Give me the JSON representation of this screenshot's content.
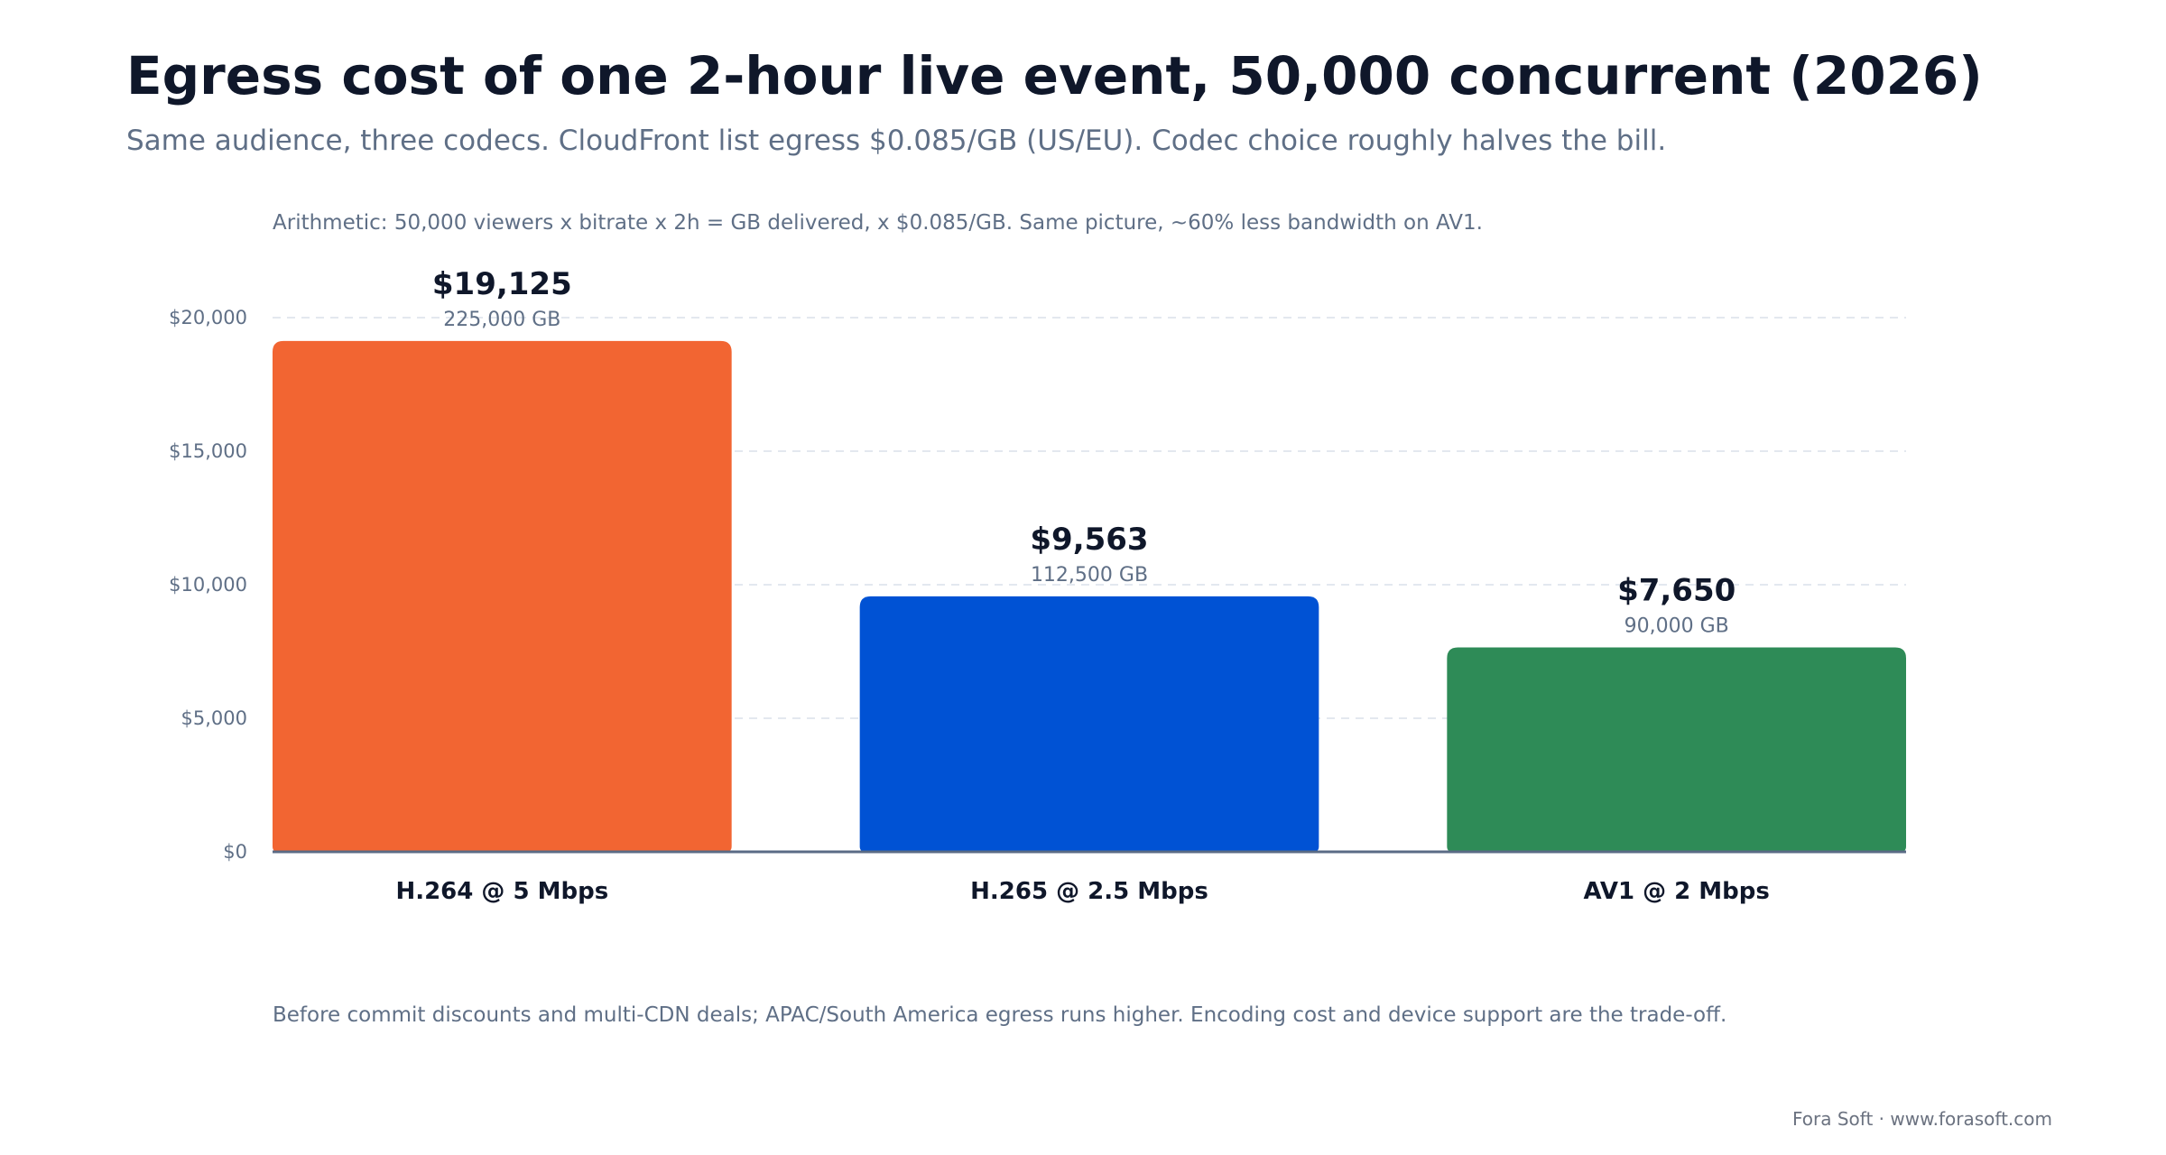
{
  "header": {
    "title": "Egress cost of one 2-hour live event, 50,000 concurrent (2026)",
    "subtitle": "Same audience, three codecs. CloudFront list egress $0.085/GB (US/EU). Codec choice roughly halves the bill."
  },
  "chart_note": "Arithmetic: 50,000 viewers x bitrate x 2h = GB delivered, x $0.085/GB. Same picture, ~60% less bandwidth on AV1.",
  "footnote": "Before commit discounts and multi-CDN deals; APAC/South America egress runs higher. Encoding cost and device support are the trade-off.",
  "credit": "Fora Soft · www.forasoft.com",
  "chart_data": {
    "type": "bar",
    "categories": [
      "H.264 @ 5 Mbps",
      "H.265 @ 2.5 Mbps",
      "AV1 @ 2 Mbps"
    ],
    "values": [
      19125,
      9563,
      7650
    ],
    "value_labels": [
      "$19,125",
      "$9,563",
      "$7,650"
    ],
    "secondary_labels": [
      "225,000 GB",
      "112,500 GB",
      "90,000 GB"
    ],
    "colors": [
      "#f26532",
      "#0052d4",
      "#2e8b57"
    ],
    "ylim": [
      0,
      20000
    ],
    "yticks": [
      0,
      5000,
      10000,
      15000,
      20000
    ],
    "ytick_labels": [
      "$0",
      "$5,000",
      "$10,000",
      "$15,000",
      "$20,000"
    ],
    "grid": true,
    "xlabel": "",
    "ylabel": ""
  }
}
